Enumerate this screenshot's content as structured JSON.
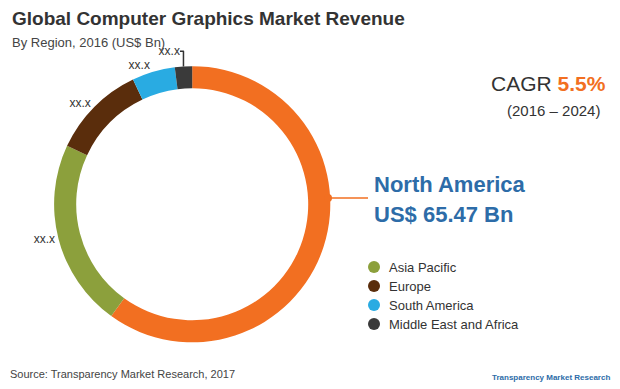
{
  "chart_data": {
    "type": "pie",
    "title": "Global Computer Graphics Market Revenue",
    "subtitle": "By Region, 2016 (US$ Bn)",
    "categories": [
      "North America",
      "Asia Pacific",
      "Europe",
      "South America",
      "Middle East and Africa"
    ],
    "values": [
      65.47,
      24,
      12,
      5.5,
      2.2
    ],
    "value_labels": [
      "US$ 65.47 Bn",
      "xx.x",
      "xx.x",
      "xx.x",
      "xx.x"
    ],
    "colors": [
      "#f26f21",
      "#8ca03c",
      "#5a2d0c",
      "#29abe2",
      "#3a3a3a"
    ],
    "data_labels": true,
    "legend_entries": [
      "Asia Pacific",
      "Europe",
      "South America",
      "Middle East and Africa"
    ],
    "cagr": {
      "label": "CAGR",
      "value": 5.5,
      "value_label": "5.5%",
      "period": "(2016 – 2024)"
    },
    "source": "Source: Transparency Market Research, 2017",
    "logo": "Transparency Market Research"
  }
}
